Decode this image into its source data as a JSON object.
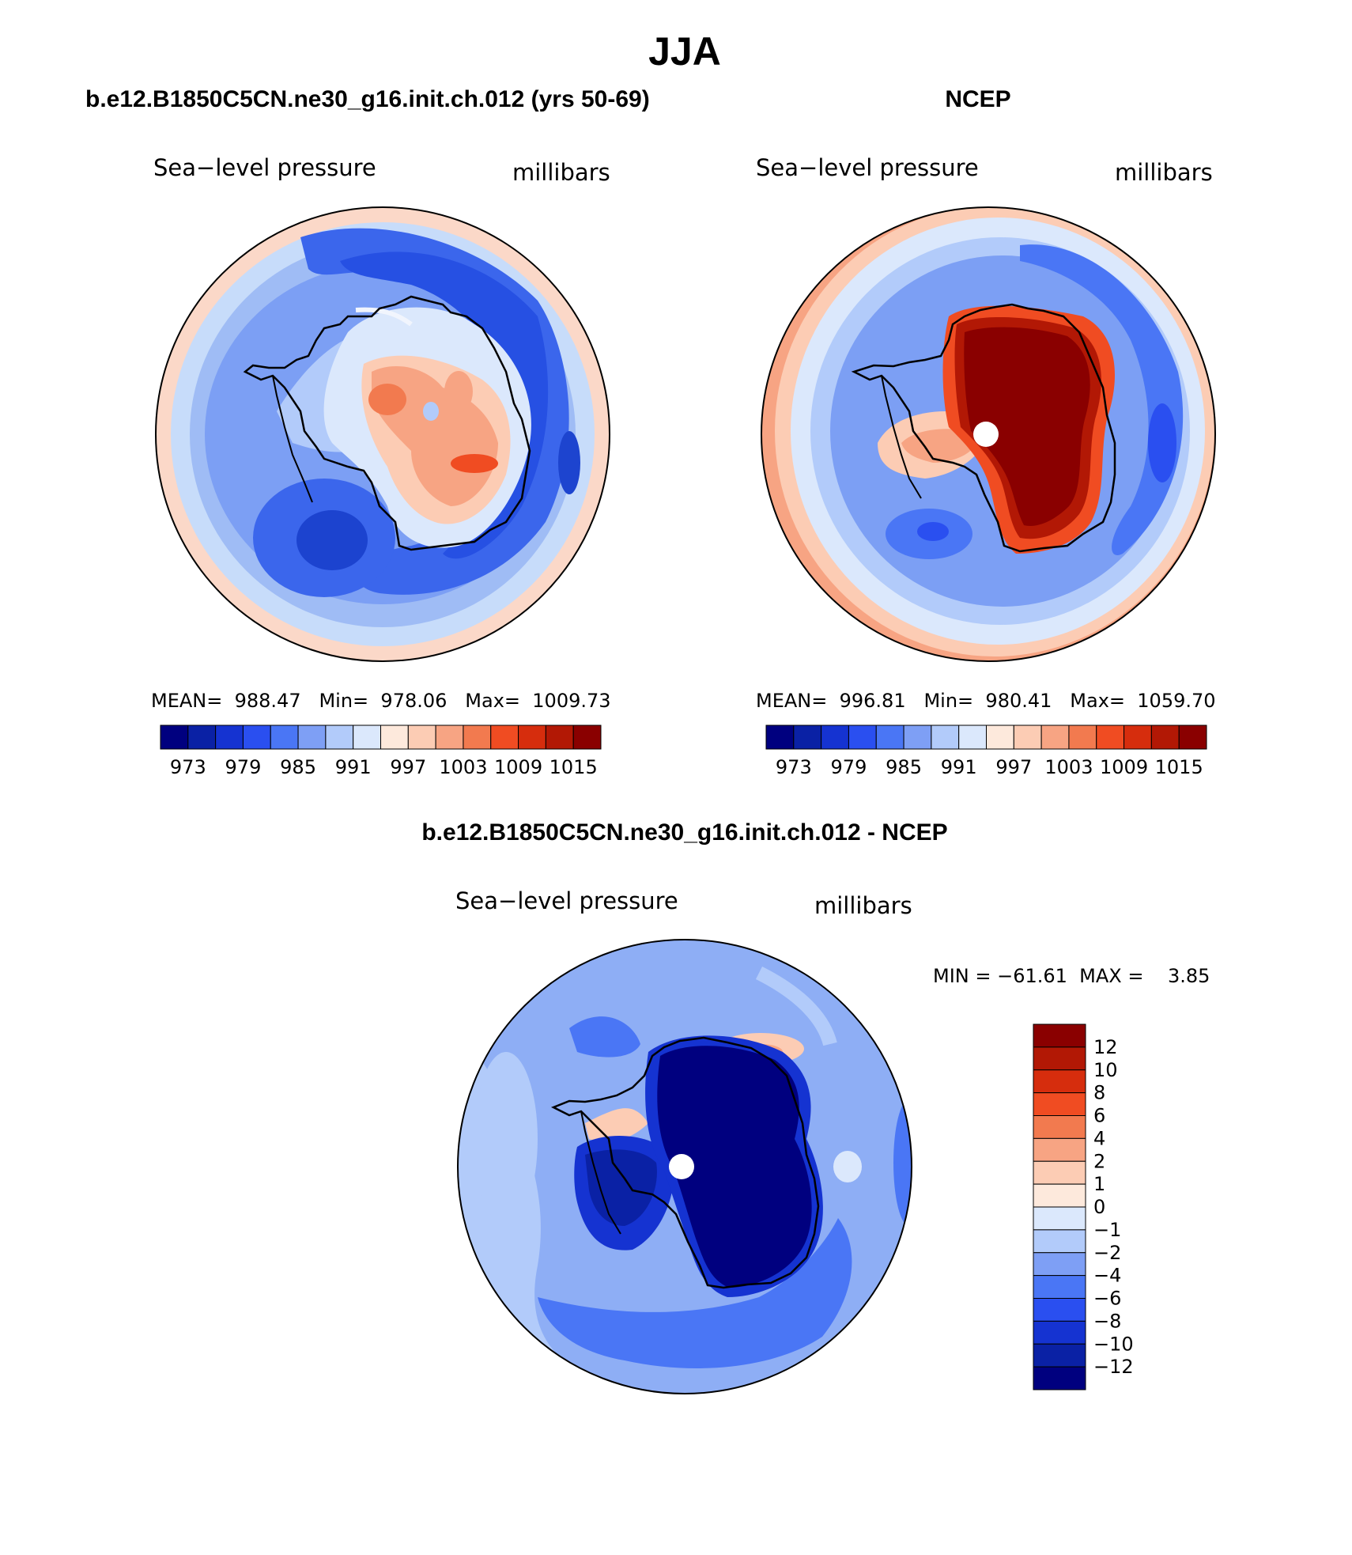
{
  "page": {
    "title": "JJA",
    "colors": {
      "ocean_low": "#0a1f8f",
      "mid_blue": "#6f94f0",
      "light_blue": "#c4dafa",
      "neutral": "#fde9dc",
      "warm": "#f06a3c",
      "dark_red": "#8a0000"
    }
  },
  "panels": [
    {
      "title": "b.e12.B1850C5CN.ne30_g16.init.ch.012 (yrs 50-69)",
      "variable": "Sea−level pressure",
      "units": "millibars",
      "stats": "MEAN=  988.47   Min=  978.06   Max=  1009.73",
      "colorbar_labels": [
        "973",
        "979",
        "985",
        "991",
        "997",
        "1003",
        "1009",
        "1015"
      ],
      "colorbar_colors": [
        "#00007f",
        "#0a21a5",
        "#1533d1",
        "#2a4ff0",
        "#4a76f5",
        "#7e9ff5",
        "#b2cbfa",
        "#dbe8fc",
        "#fde9dc",
        "#fcccb4",
        "#f7a483",
        "#f27a4f",
        "#f04c22",
        "#d62d0d",
        "#b21805",
        "#8a0000"
      ]
    },
    {
      "title": "NCEP",
      "variable": "Sea−level pressure",
      "units": "millibars",
      "stats": "MEAN=  996.81   Min=  980.41   Max=  1059.70",
      "colorbar_labels": [
        "973",
        "979",
        "985",
        "991",
        "997",
        "1003",
        "1009",
        "1015"
      ],
      "colorbar_colors": [
        "#00007f",
        "#0a21a5",
        "#1533d1",
        "#2a4ff0",
        "#4a76f5",
        "#7e9ff5",
        "#b2cbfa",
        "#dbe8fc",
        "#fde9dc",
        "#fcccb4",
        "#f7a483",
        "#f27a4f",
        "#f04c22",
        "#d62d0d",
        "#b21805",
        "#8a0000"
      ]
    },
    {
      "title": "b.e12.B1850C5CN.ne30_g16.init.ch.012 - NCEP",
      "variable": "Sea−level pressure",
      "units": "millibars",
      "stats": "MIN = −61.61  MAX =    3.85",
      "colorbar_labels": [
        "12",
        "10",
        "8",
        "6",
        "4",
        "2",
        "1",
        "0",
        "−1",
        "−2",
        "−4",
        "−6",
        "−8",
        "−10",
        "−12"
      ],
      "colorbar_colors": [
        "#8a0000",
        "#b21805",
        "#d62d0d",
        "#f04c22",
        "#f27a4f",
        "#f7a483",
        "#fcccb4",
        "#fde9dc",
        "#dbe8fc",
        "#b2cbfa",
        "#7e9ff5",
        "#4a76f5",
        "#2a4ff0",
        "#1533d1",
        "#0a21a5",
        "#00007f"
      ]
    }
  ],
  "chart_data": [
    {
      "type": "heatmap",
      "title": "b.e12.B1850C5CN.ne30_g16.init.ch.012 (yrs 50-69)",
      "projection": "south polar stereographic",
      "mean": 988.47,
      "min": 978.06,
      "max": 1009.73,
      "levels": [
        973,
        976,
        979,
        982,
        985,
        988,
        991,
        994,
        997,
        1000,
        1003,
        1006,
        1009,
        1012,
        1015
      ]
    },
    {
      "type": "heatmap",
      "title": "NCEP",
      "projection": "south polar stereographic",
      "mean": 996.81,
      "min": 980.41,
      "max": 1059.7,
      "levels": [
        973,
        976,
        979,
        982,
        985,
        988,
        991,
        994,
        997,
        1000,
        1003,
        1006,
        1009,
        1012,
        1015
      ]
    },
    {
      "type": "heatmap",
      "title": "b.e12.B1850C5CN.ne30_g16.init.ch.012 - NCEP",
      "projection": "south polar stereographic",
      "min": -61.61,
      "max": 3.85,
      "levels": [
        -12,
        -10,
        -8,
        -6,
        -4,
        -2,
        -1,
        0,
        1,
        2,
        4,
        6,
        8,
        10,
        12
      ]
    }
  ]
}
